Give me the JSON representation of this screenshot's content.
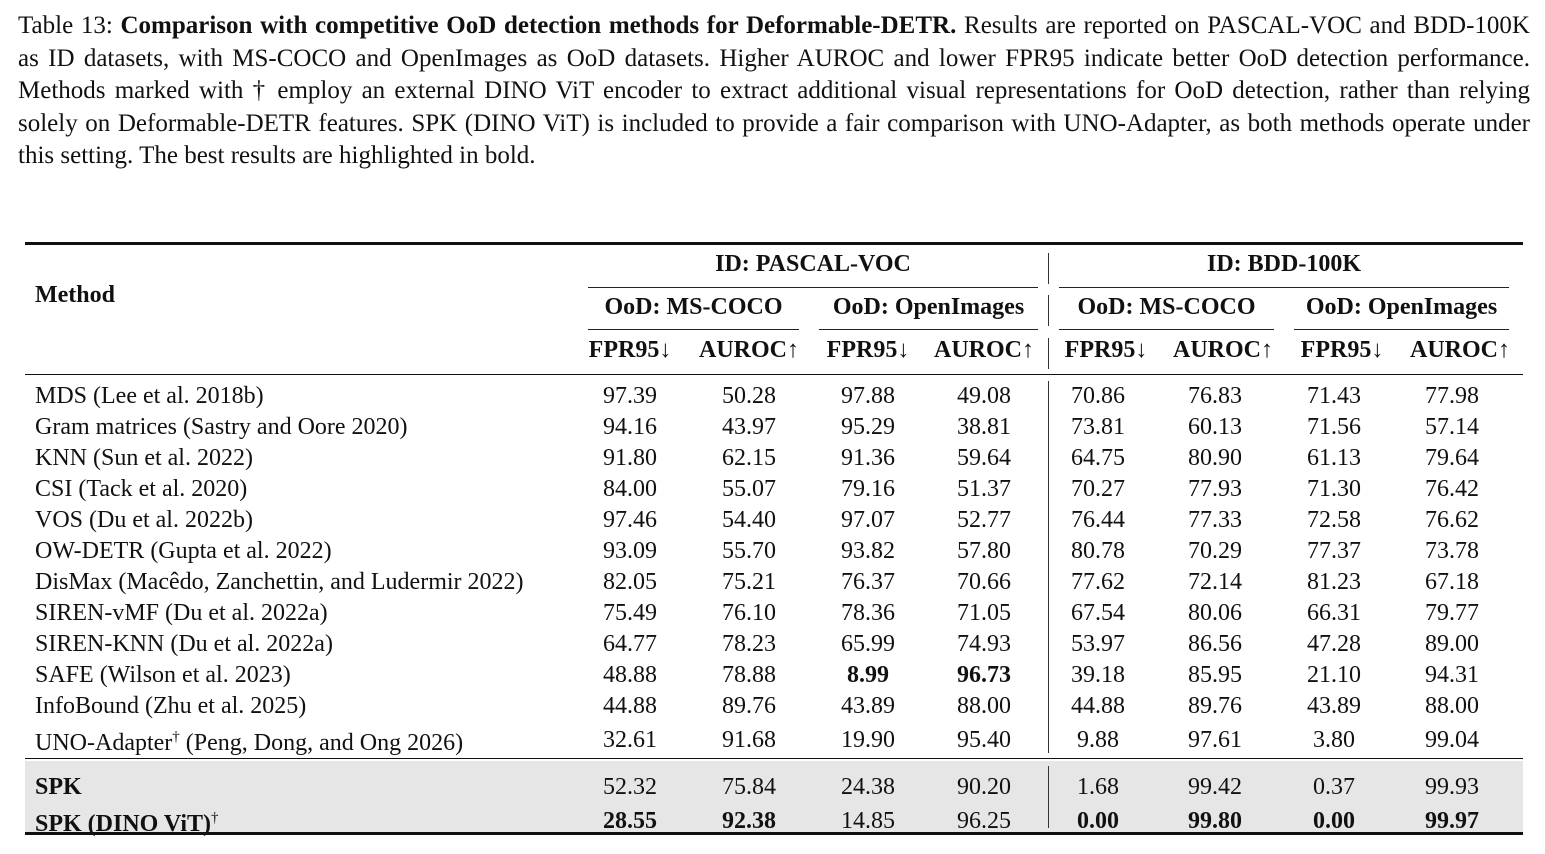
{
  "caption": {
    "label": "Table 13: ",
    "title": "Comparison with competitive OoD detection methods for Deformable-DETR.",
    "text": " Results are reported on PASCAL-VOC and BDD-100K as ID datasets, with MS-COCO and OpenImages as OoD datasets. Higher AUROC and lower FPR95 indicate better OoD detection performance. Methods marked with † employ an external DINO ViT encoder to extract additional visual representations for OoD detection, rather than relying solely on Deformable-DETR features. SPK (DINO ViT) is included to provide a fair comparison with UNO-Adapter, as both methods operate under this setting. The best results are highlighted in bold."
  },
  "header": {
    "method": "Method",
    "id_groups": [
      "ID: PASCAL-VOC",
      "ID: BDD-100K"
    ],
    "ood_groups": [
      "OoD: MS-COCO",
      "OoD: OpenImages",
      "OoD: MS-COCO",
      "OoD: OpenImages"
    ],
    "metrics": [
      "FPR95↓",
      "AUROC↑",
      "FPR95↓",
      "AUROC↑",
      "FPR95↓",
      "AUROC↑",
      "FPR95↓",
      "AUROC↑"
    ]
  },
  "rows": [
    {
      "method": "MDS (Lee et al. 2018b)",
      "values": [
        "97.39",
        "50.28",
        "97.88",
        "49.08",
        "70.86",
        "76.83",
        "71.43",
        "77.98"
      ],
      "bold": []
    },
    {
      "method": "Gram matrices (Sastry and Oore 2020)",
      "values": [
        "94.16",
        "43.97",
        "95.29",
        "38.81",
        "73.81",
        "60.13",
        "71.56",
        "57.14"
      ],
      "bold": []
    },
    {
      "method": "KNN (Sun et al. 2022)",
      "values": [
        "91.80",
        "62.15",
        "91.36",
        "59.64",
        "64.75",
        "80.90",
        "61.13",
        "79.64"
      ],
      "bold": []
    },
    {
      "method": "CSI (Tack et al. 2020)",
      "values": [
        "84.00",
        "55.07",
        "79.16",
        "51.37",
        "70.27",
        "77.93",
        "71.30",
        "76.42"
      ],
      "bold": []
    },
    {
      "method": "VOS (Du et al. 2022b)",
      "values": [
        "97.46",
        "54.40",
        "97.07",
        "52.77",
        "76.44",
        "77.33",
        "72.58",
        "76.62"
      ],
      "bold": []
    },
    {
      "method": "OW-DETR (Gupta et al. 2022)",
      "values": [
        "93.09",
        "55.70",
        "93.82",
        "57.80",
        "80.78",
        "70.29",
        "77.37",
        "73.78"
      ],
      "bold": []
    },
    {
      "method": "DisMax (Macêdo, Zanchettin, and Ludermir 2022)",
      "values": [
        "82.05",
        "75.21",
        "76.37",
        "70.66",
        "77.62",
        "72.14",
        "81.23",
        "67.18"
      ],
      "bold": []
    },
    {
      "method": "SIREN-vMF (Du et al. 2022a)",
      "values": [
        "75.49",
        "76.10",
        "78.36",
        "71.05",
        "67.54",
        "80.06",
        "66.31",
        "79.77"
      ],
      "bold": []
    },
    {
      "method": "SIREN-KNN (Du et al. 2022a)",
      "values": [
        "64.77",
        "78.23",
        "65.99",
        "74.93",
        "53.97",
        "86.56",
        "47.28",
        "89.00"
      ],
      "bold": []
    },
    {
      "method": "SAFE (Wilson et al. 2023)",
      "values": [
        "48.88",
        "78.88",
        "8.99",
        "96.73",
        "39.18",
        "85.95",
        "21.10",
        "94.31"
      ],
      "bold": [
        2,
        3
      ]
    },
    {
      "method": "InfoBound (Zhu et al. 2025)",
      "values": [
        "44.88",
        "89.76",
        "43.89",
        "88.00",
        "44.88",
        "89.76",
        "43.89",
        "88.00"
      ],
      "bold": []
    },
    {
      "method": "UNO-Adapter",
      "sup": "†",
      "method_suffix": " (Peng, Dong, and Ong 2026)",
      "values": [
        "32.61",
        "91.68",
        "19.90",
        "95.40",
        "9.88",
        "97.61",
        "3.80",
        "99.04"
      ],
      "bold": []
    }
  ],
  "ours": [
    {
      "method": "SPK",
      "values": [
        "52.32",
        "75.84",
        "24.38",
        "90.20",
        "1.68",
        "99.42",
        "0.37",
        "99.93"
      ],
      "bold": []
    },
    {
      "method": "SPK (DINO ViT)",
      "sup": "†",
      "values": [
        "28.55",
        "92.38",
        "14.85",
        "96.25",
        "0.00",
        "99.80",
        "0.00",
        "99.97"
      ],
      "bold": [
        0,
        1,
        4,
        5,
        6,
        7
      ]
    }
  ]
}
